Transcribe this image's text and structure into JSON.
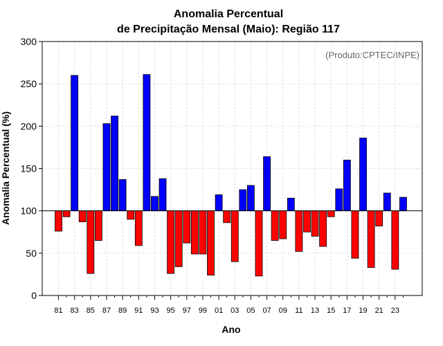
{
  "chart_data": {
    "type": "bar",
    "title": "Anomalia Percentual",
    "subtitle": "de Precipitação Mensal (Maio): Região 117",
    "xlabel": "Ano",
    "ylabel": "Anomalia Percentual (%)",
    "annotation": "(Produto:CPTEC/INPE)",
    "ylim": [
      0,
      300
    ],
    "yticks": [
      0,
      50,
      100,
      150,
      200,
      250,
      300
    ],
    "baseline": 100,
    "grid": true,
    "categories": [
      "81",
      "82",
      "83",
      "84",
      "85",
      "86",
      "87",
      "88",
      "89",
      "90",
      "91",
      "92",
      "93",
      "94",
      "95",
      "96",
      "97",
      "98",
      "99",
      "00",
      "01",
      "02",
      "03",
      "04",
      "05",
      "06",
      "07",
      "08",
      "09",
      "10",
      "11",
      "12",
      "13",
      "14",
      "15",
      "16",
      "17",
      "18",
      "19",
      "20",
      "21",
      "22",
      "23",
      "24"
    ],
    "xtick_labels": [
      "81",
      "83",
      "85",
      "87",
      "89",
      "91",
      "93",
      "95",
      "97",
      "99",
      "01",
      "03",
      "05",
      "07",
      "09",
      "11",
      "13",
      "15",
      "17",
      "19",
      "21",
      "23"
    ],
    "values": [
      76,
      93,
      260,
      87,
      26,
      65,
      203,
      212,
      137,
      90,
      59,
      261,
      117,
      138,
      26,
      34,
      62,
      49,
      49,
      24,
      119,
      86,
      40,
      125,
      130,
      23,
      164,
      65,
      67,
      115,
      52,
      75,
      70,
      58,
      93,
      126,
      160,
      44,
      186,
      33,
      82,
      121,
      31,
      116
    ],
    "colors": {
      "above": "#0000ff",
      "below": "#ff0000",
      "grid": "#d9d9d9",
      "baseline": "#000000"
    }
  }
}
